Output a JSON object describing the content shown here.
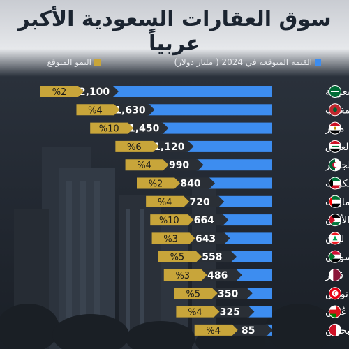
{
  "page": {
    "title": "سوق العقارات السعودية الأكبر عربياً"
  },
  "legend": {
    "value_label": "القيمة المتوقعة في 2024 ( مليار دولار)",
    "growth_label": "النمو المتوقع"
  },
  "colors": {
    "bar": "#3d8df0",
    "growth": "#c8a53a",
    "value_tag": "#2a2f36"
  },
  "chart_data": {
    "type": "bar",
    "orientation": "horizontal",
    "title": "سوق العقارات السعودية الأكبر عربياً",
    "categories": [
      "السعودية",
      "المغرب",
      "مصر",
      "العراق",
      "الجزائر",
      "الكويت",
      "الإمارات",
      "الأردن",
      "لبنان",
      "السودان",
      "قطر",
      "تونس",
      "عُمان",
      "البحرين"
    ],
    "flags": [
      "sa",
      "ma",
      "eg",
      "iq",
      "dz",
      "kw",
      "ae",
      "jo",
      "lb",
      "sd",
      "qa",
      "tn",
      "om",
      "bh"
    ],
    "series": [
      {
        "name": "القيمة المتوقعة في 2024 ( مليار دولار)",
        "values": [
          2100,
          1630,
          1450,
          1120,
          990,
          840,
          720,
          664,
          643,
          558,
          486,
          350,
          325,
          85
        ],
        "labels": [
          "2,100",
          "1,630",
          "1,450",
          "1,120",
          "990",
          "840",
          "720",
          "664",
          "643",
          "558",
          "486",
          "350",
          "325",
          "85"
        ]
      },
      {
        "name": "النمو المتوقع",
        "values": [
          2,
          4,
          10,
          6,
          4,
          2,
          4,
          10,
          3,
          5,
          3,
          5,
          4,
          4
        ],
        "labels": [
          "%2",
          "%4",
          "%10",
          "%6",
          "%4",
          "%2",
          "%4",
          "%10",
          "%3",
          "%5",
          "%3",
          "%5",
          "%4",
          "%4"
        ]
      }
    ],
    "xlim": [
      0,
      2100
    ],
    "grid": false,
    "legend": "top"
  }
}
